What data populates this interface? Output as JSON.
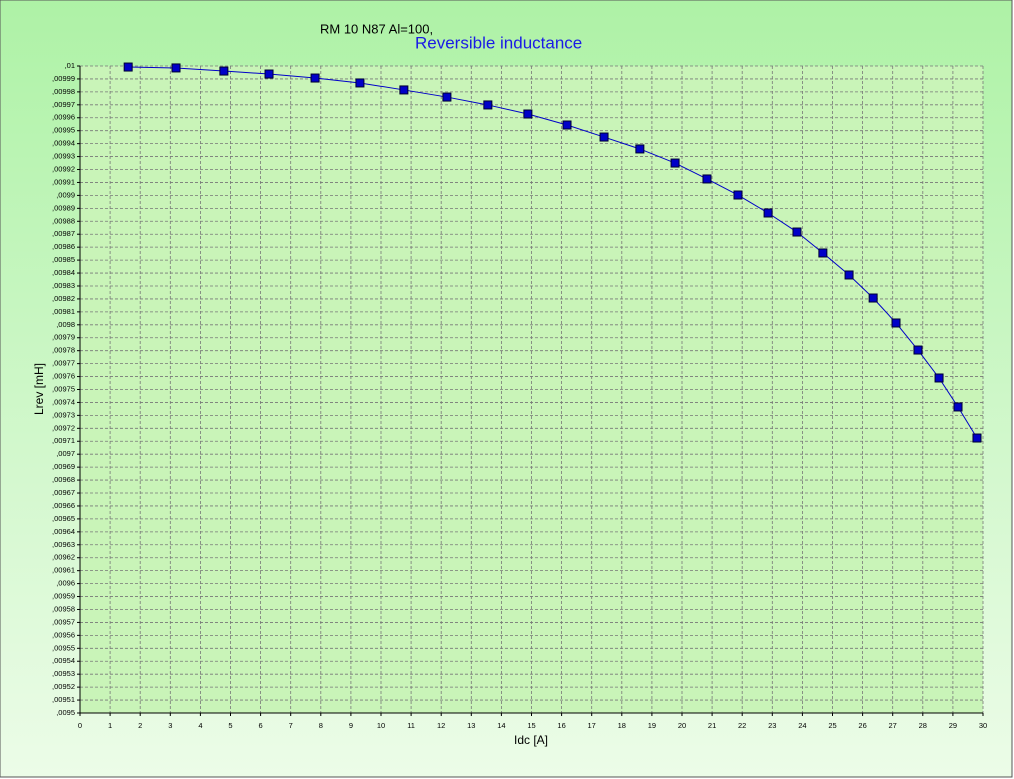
{
  "chart_data": {
    "type": "line",
    "title": "RM 10 N87 Al=100,",
    "subtitle": "Reversible inductance",
    "x_label": "Idc [A]",
    "y_label": "Lrev [mH]",
    "series": [
      {
        "name": "Lrev",
        "color": "#0000c8",
        "x": [
          1.6,
          3.19,
          4.78,
          6.28,
          7.81,
          9.3,
          10.76,
          12.19,
          13.55,
          14.88,
          16.18,
          17.41,
          18.6,
          19.77,
          20.83,
          21.86,
          22.86,
          23.82,
          24.68,
          25.55,
          26.35,
          27.11,
          27.84,
          28.54,
          29.17,
          29.8
        ],
        "values": [
          0.0099992,
          0.0099985,
          0.0099961,
          0.0099938,
          0.0099907,
          0.0099869,
          0.0099815,
          0.009976,
          0.0099699,
          0.0099629,
          0.0099544,
          0.0099451,
          0.0099359,
          0.009925,
          0.0099127,
          0.0099003,
          0.0098864,
          0.0098717,
          0.0098555,
          0.0098385,
          0.0098207,
          0.0098014,
          0.0097805,
          0.0097589,
          0.0097365,
          0.0097125
        ]
      }
    ],
    "xlim": [
      0,
      30
    ],
    "xticks": [
      0,
      1,
      2,
      3,
      4,
      5,
      6,
      7,
      8,
      9,
      10,
      11,
      12,
      13,
      14,
      15,
      16,
      17,
      18,
      19,
      20,
      21,
      22,
      23,
      24,
      25,
      26,
      27,
      28,
      29,
      30
    ],
    "ylim": [
      0.0095,
      0.01
    ],
    "yticks": [
      {
        "value": 0.0095,
        "label": ",0095"
      },
      {
        "value": 0.00951,
        "label": ",00951"
      },
      {
        "value": 0.00952,
        "label": ",00952"
      },
      {
        "value": 0.00953,
        "label": ",00953"
      },
      {
        "value": 0.00954,
        "label": ",00954"
      },
      {
        "value": 0.00955,
        "label": ",00955"
      },
      {
        "value": 0.00956,
        "label": ",00956"
      },
      {
        "value": 0.00957,
        "label": ",00957"
      },
      {
        "value": 0.00958,
        "label": ",00958"
      },
      {
        "value": 0.00959,
        "label": ",00959"
      },
      {
        "value": 0.0096,
        "label": ",0096"
      },
      {
        "value": 0.00961,
        "label": ",00961"
      },
      {
        "value": 0.00962,
        "label": ",00962"
      },
      {
        "value": 0.00963,
        "label": ",00963"
      },
      {
        "value": 0.00964,
        "label": ",00964"
      },
      {
        "value": 0.00965,
        "label": ",00965"
      },
      {
        "value": 0.00966,
        "label": ",00966"
      },
      {
        "value": 0.00967,
        "label": ",00967"
      },
      {
        "value": 0.00968,
        "label": ",00968"
      },
      {
        "value": 0.00969,
        "label": ",00969"
      },
      {
        "value": 0.0097,
        "label": ",0097"
      },
      {
        "value": 0.00971,
        "label": ",00971"
      },
      {
        "value": 0.00972,
        "label": ",00972"
      },
      {
        "value": 0.00973,
        "label": ",00973"
      },
      {
        "value": 0.00974,
        "label": ",00974"
      },
      {
        "value": 0.00975,
        "label": ",00975"
      },
      {
        "value": 0.00976,
        "label": ",00976"
      },
      {
        "value": 0.00977,
        "label": ",00977"
      },
      {
        "value": 0.00978,
        "label": ",00978"
      },
      {
        "value": 0.00979,
        "label": ",00979"
      },
      {
        "value": 0.0098,
        "label": ",0098"
      },
      {
        "value": 0.00981,
        "label": ",00981"
      },
      {
        "value": 0.00982,
        "label": ",00982"
      },
      {
        "value": 0.00983,
        "label": ",00983"
      },
      {
        "value": 0.00984,
        "label": ",00984"
      },
      {
        "value": 0.00985,
        "label": ",00985"
      },
      {
        "value": 0.00986,
        "label": ",00986"
      },
      {
        "value": 0.00987,
        "label": ",00987"
      },
      {
        "value": 0.00988,
        "label": ",00988"
      },
      {
        "value": 0.00989,
        "label": ",00989"
      },
      {
        "value": 0.0099,
        "label": ",0099"
      },
      {
        "value": 0.00991,
        "label": ",00991"
      },
      {
        "value": 0.00992,
        "label": ",00992"
      },
      {
        "value": 0.00993,
        "label": ",00993"
      },
      {
        "value": 0.00994,
        "label": ",00994"
      },
      {
        "value": 0.00995,
        "label": ",00995"
      },
      {
        "value": 0.00996,
        "label": ",00996"
      },
      {
        "value": 0.00997,
        "label": ",00997"
      },
      {
        "value": 0.00998,
        "label": ",00998"
      },
      {
        "value": 0.00999,
        "label": ",00999"
      },
      {
        "value": 0.01,
        "label": ",01"
      }
    ],
    "grid": true
  }
}
